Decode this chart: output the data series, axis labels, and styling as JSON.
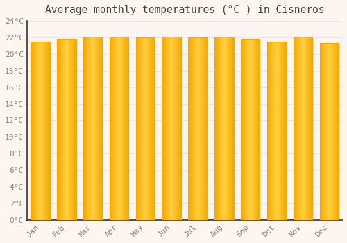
{
  "title": "Average monthly temperatures (°C ) in Cisneros",
  "months": [
    "Jan",
    "Feb",
    "Mar",
    "Apr",
    "May",
    "Jun",
    "Jul",
    "Aug",
    "Sep",
    "Oct",
    "Nov",
    "Dec"
  ],
  "temperatures": [
    21.5,
    21.8,
    22.1,
    22.1,
    22.0,
    22.1,
    22.0,
    22.1,
    21.8,
    21.5,
    22.1,
    21.3
  ],
  "bar_color_center": "#FFD040",
  "bar_color_edge": "#F5A800",
  "ylim": [
    0,
    24
  ],
  "yticks": [
    0,
    2,
    4,
    6,
    8,
    10,
    12,
    14,
    16,
    18,
    20,
    22,
    24
  ],
  "ytick_labels": [
    "0°C",
    "2°C",
    "4°C",
    "6°C",
    "8°C",
    "10°C",
    "12°C",
    "14°C",
    "16°C",
    "18°C",
    "20°C",
    "22°C",
    "24°C"
  ],
  "background_color": "#fdf5f0",
  "plot_bg_color": "#fdf5f0",
  "grid_color": "#e8e8e8",
  "title_fontsize": 10.5,
  "tick_fontsize": 8,
  "font_color": "#888888",
  "spine_color": "#333333"
}
